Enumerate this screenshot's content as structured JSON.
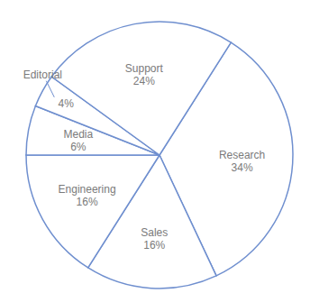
{
  "chart_data": {
    "type": "pie",
    "categories": [
      "Research",
      "Sales",
      "Engineering",
      "Media",
      "Editorial",
      "Support"
    ],
    "values": [
      34,
      16,
      16,
      6,
      4,
      24
    ],
    "value_labels": [
      "34%",
      "16%",
      "16%",
      "6%",
      "4%",
      "24%"
    ],
    "color": "#6f8fcf",
    "data_labels": true
  }
}
